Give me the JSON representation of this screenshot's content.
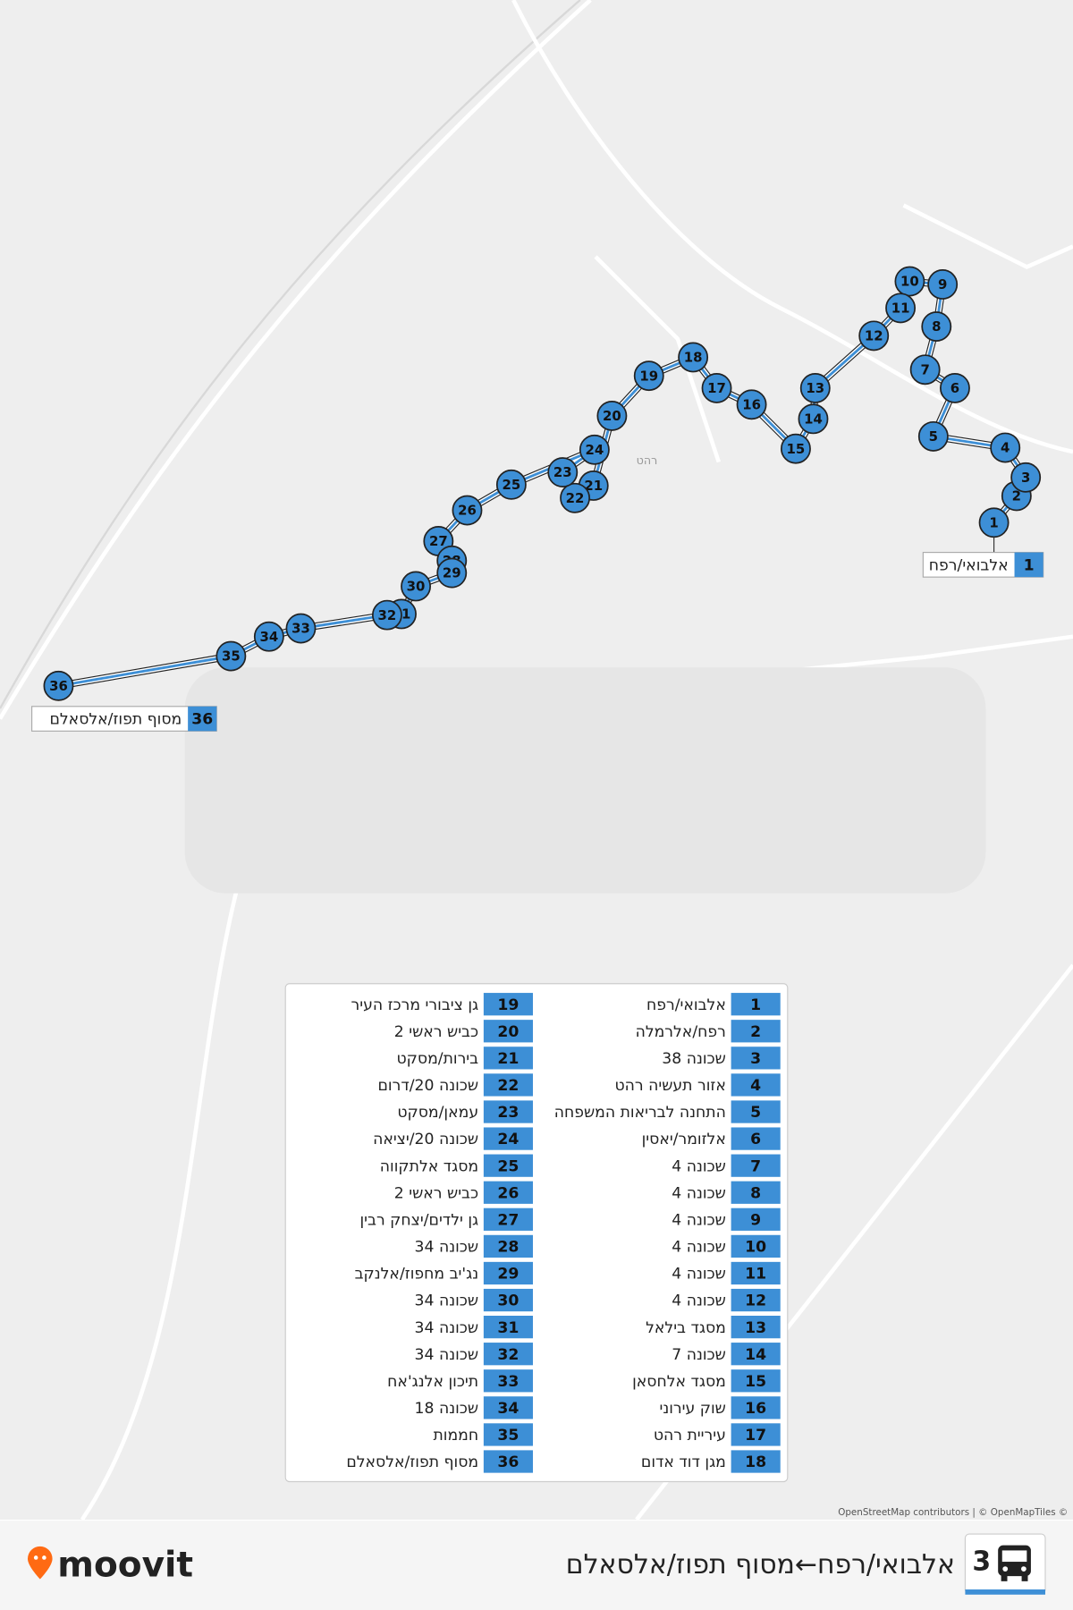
{
  "header": {
    "route_number": "3",
    "route_name": "אלבואי/רפח←מסוף תפוז/אלסאלם"
  },
  "brand": "moovit",
  "attribution": "OpenStreetMap contributors | © OpenMapTiles ©",
  "map_labels": {
    "town": "רהט"
  },
  "stops": [
    {
      "number": 1,
      "name": "אלבואי/רפח"
    },
    {
      "number": 2,
      "name": "רפח/אלרמלה"
    },
    {
      "number": 3,
      "name": "שכונה 38"
    },
    {
      "number": 4,
      "name": "אזור תעשיה רהט"
    },
    {
      "number": 5,
      "name": "התחנה לבריאות המשפחה"
    },
    {
      "number": 6,
      "name": "אלזומר/יאסין"
    },
    {
      "number": 7,
      "name": "שכונה 4"
    },
    {
      "number": 8,
      "name": "שכונה 4"
    },
    {
      "number": 9,
      "name": "שכונה 4"
    },
    {
      "number": 10,
      "name": "שכונה 4"
    },
    {
      "number": 11,
      "name": "שכונה 4"
    },
    {
      "number": 12,
      "name": "שכונה 4"
    },
    {
      "number": 13,
      "name": "מסגד בילאל"
    },
    {
      "number": 14,
      "name": "שכונה 7"
    },
    {
      "number": 15,
      "name": "מסגד אלחסאן"
    },
    {
      "number": 16,
      "name": "שוק עירוני"
    },
    {
      "number": 17,
      "name": "עיריית רהט"
    },
    {
      "number": 18,
      "name": "מגן דוד אדום"
    },
    {
      "number": 19,
      "name": "גן ציבורי מרכז העיר"
    },
    {
      "number": 20,
      "name": "כביש ראשי 2"
    },
    {
      "number": 21,
      "name": "בירות/מסקט"
    },
    {
      "number": 22,
      "name": "שכונה 20/דרום"
    },
    {
      "number": 23,
      "name": "עמאן/מסקט"
    },
    {
      "number": 24,
      "name": "שכונה 20/יציאה"
    },
    {
      "number": 25,
      "name": "מסגד אלתקווה"
    },
    {
      "number": 26,
      "name": "כביש ראשי 2"
    },
    {
      "number": 27,
      "name": "גן ילדים/יצחק רבין"
    },
    {
      "number": 28,
      "name": "שכונה 34"
    },
    {
      "number": 29,
      "name": "נג'יב מחפוז/אלנקב"
    },
    {
      "number": 30,
      "name": "שכונה 34"
    },
    {
      "number": 31,
      "name": "שכונה 34"
    },
    {
      "number": 32,
      "name": "שכונה 34"
    },
    {
      "number": 33,
      "name": "תיכון אלנג'אח"
    },
    {
      "number": 34,
      "name": "שכונה 18"
    },
    {
      "number": 35,
      "name": "חממות"
    },
    {
      "number": 36,
      "name": "מסוף תפוז/אלסאלם"
    }
  ]
}
